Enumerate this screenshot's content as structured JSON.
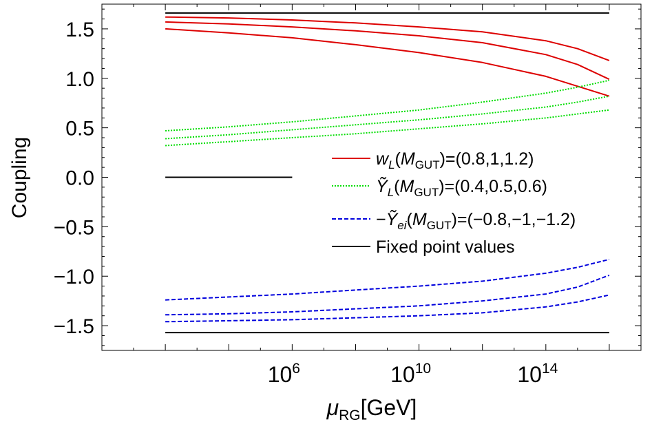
{
  "chart_data": {
    "type": "line",
    "title": "",
    "xlabel": "μRG[GeV]",
    "xlabel_main": "μ",
    "xlabel_sub": "RG",
    "xlabel_unit": "[GeV]",
    "ylabel": "Coupling",
    "x_scale": "log10",
    "xlim": [
      1,
      1e+17
    ],
    "ylim": [
      -1.75,
      1.75
    ],
    "x_ticks": [
      {
        "base": "10",
        "exp": "6",
        "value": 1000000.0
      },
      {
        "base": "10",
        "exp": "10",
        "value": 10000000000.0
      },
      {
        "base": "10",
        "exp": "14",
        "value": 100000000000000.0
      }
    ],
    "y_ticks": [
      "1.5",
      "1.0",
      "0.5",
      "0.0",
      "−0.5",
      "−1.0",
      "−1.5"
    ],
    "y_tick_values": [
      1.5,
      1.0,
      0.5,
      0.0,
      -0.5,
      -1.0,
      -1.5
    ],
    "grid": false,
    "legend_position": "middle-right",
    "legend": [
      {
        "name": "wL(MGUT)=(0.8,1,1.2)",
        "pre": "",
        "sym": "w",
        "sym_sub": "L",
        "mid": "(M",
        "mid_sub": "GUT",
        "post": ")=(0.8,1,1.2)",
        "color": "#dd0000",
        "dash": ""
      },
      {
        "name": "ỸL(MGUT)=(0.4,0.5,0.6)",
        "pre": "",
        "sym": "Ỹ",
        "sym_sub": "L",
        "mid": "(M",
        "mid_sub": "GUT",
        "post": ")=(0.4,0.5,0.6)",
        "color": "#00dd00",
        "dash": "2,2"
      },
      {
        "name": "−Ỹei(MGUT)=(−0.8,−1,−1.2)",
        "pre": "−",
        "sym": "Ỹ",
        "sym_sub": "ei",
        "mid": "(M",
        "mid_sub": "GUT",
        "post": ")=(−0.8,−1,−1.2)",
        "color": "#0000dd",
        "dash": "6,3"
      },
      {
        "name": "Fixed point values",
        "pre": "",
        "sym": "",
        "sym_sub": "",
        "mid": "",
        "mid_sub": "",
        "post": "Fixed point values",
        "color": "#000000",
        "dash": ""
      }
    ],
    "series": [
      {
        "group": "wL",
        "color": "#dd0000",
        "dash": "",
        "x": [
          100,
          10000.0,
          1000000.0,
          100000000.0,
          10000000000.0,
          1000000000000.0,
          100000000000000.0,
          1000000000000000.0,
          1e+16
        ],
        "y": [
          1.5,
          1.46,
          1.41,
          1.34,
          1.26,
          1.16,
          1.02,
          0.92,
          0.82
        ]
      },
      {
        "group": "wL",
        "color": "#dd0000",
        "dash": "",
        "x": [
          100,
          10000.0,
          1000000.0,
          100000000.0,
          10000000000.0,
          1000000000000.0,
          100000000000000.0,
          1000000000000000.0,
          1e+16
        ],
        "y": [
          1.57,
          1.55,
          1.52,
          1.48,
          1.43,
          1.36,
          1.24,
          1.14,
          0.99
        ]
      },
      {
        "group": "wL",
        "color": "#dd0000",
        "dash": "",
        "x": [
          100,
          10000.0,
          1000000.0,
          100000000.0,
          10000000000.0,
          1000000000000.0,
          100000000000000.0,
          1000000000000000.0,
          1e+16
        ],
        "y": [
          1.62,
          1.61,
          1.59,
          1.56,
          1.52,
          1.47,
          1.38,
          1.3,
          1.18
        ]
      },
      {
        "group": "YL",
        "color": "#00dd00",
        "dash": "2,2",
        "x": [
          100,
          10000.0,
          1000000.0,
          100000000.0,
          10000000000.0,
          1000000000000.0,
          100000000000000.0,
          1000000000000000.0,
          1e+16
        ],
        "y": [
          0.32,
          0.36,
          0.4,
          0.44,
          0.49,
          0.54,
          0.6,
          0.64,
          0.68
        ]
      },
      {
        "group": "YL",
        "color": "#00dd00",
        "dash": "2,2",
        "x": [
          100,
          10000.0,
          1000000.0,
          100000000.0,
          10000000000.0,
          1000000000000.0,
          100000000000000.0,
          1000000000000000.0,
          1e+16
        ],
        "y": [
          0.39,
          0.43,
          0.48,
          0.53,
          0.58,
          0.64,
          0.71,
          0.76,
          0.82
        ]
      },
      {
        "group": "YL",
        "color": "#00dd00",
        "dash": "2,2",
        "x": [
          100,
          10000.0,
          1000000.0,
          100000000.0,
          10000000000.0,
          1000000000000.0,
          100000000000000.0,
          1000000000000000.0,
          1e+16
        ],
        "y": [
          0.47,
          0.51,
          0.56,
          0.62,
          0.68,
          0.76,
          0.85,
          0.91,
          0.98
        ]
      },
      {
        "group": "Yei",
        "color": "#0000dd",
        "dash": "6,3",
        "x": [
          100,
          10000.0,
          1000000.0,
          100000000.0,
          10000000000.0,
          1000000000000.0,
          100000000000000.0,
          1000000000000000.0,
          1e+16
        ],
        "y": [
          -1.24,
          -1.21,
          -1.18,
          -1.14,
          -1.1,
          -1.05,
          -0.97,
          -0.91,
          -0.83
        ]
      },
      {
        "group": "Yei",
        "color": "#0000dd",
        "dash": "6,3",
        "x": [
          100,
          10000.0,
          1000000.0,
          100000000.0,
          10000000000.0,
          1000000000000.0,
          100000000000000.0,
          1000000000000000.0,
          1e+16
        ],
        "y": [
          -1.39,
          -1.38,
          -1.36,
          -1.33,
          -1.3,
          -1.25,
          -1.18,
          -1.11,
          -0.99
        ]
      },
      {
        "group": "Yei",
        "color": "#0000dd",
        "dash": "6,3",
        "x": [
          100,
          10000.0,
          1000000.0,
          100000000.0,
          10000000000.0,
          1000000000000.0,
          100000000000000.0,
          1000000000000000.0,
          1e+16
        ],
        "y": [
          -1.46,
          -1.45,
          -1.44,
          -1.42,
          -1.4,
          -1.37,
          -1.31,
          -1.26,
          -1.19
        ]
      },
      {
        "group": "fixed",
        "color": "#000000",
        "dash": "",
        "x": [
          100,
          1e+16
        ],
        "y": [
          1.66,
          1.66
        ]
      },
      {
        "group": "fixed",
        "color": "#000000",
        "dash": "",
        "x": [
          100,
          1000000.0
        ],
        "y": [
          0.0,
          0.0
        ]
      },
      {
        "group": "fixed",
        "color": "#000000",
        "dash": "",
        "x": [
          100,
          1e+16
        ],
        "y": [
          -1.57,
          -1.57
        ]
      }
    ]
  }
}
